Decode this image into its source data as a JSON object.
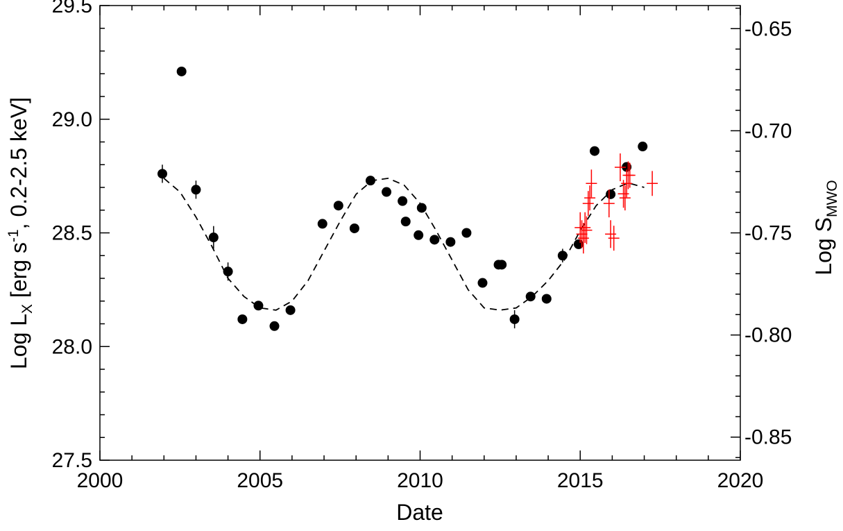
{
  "chart_data": {
    "type": "scatter",
    "xlabel": "Date",
    "ylabel": {
      "main": "Log L",
      "sub": "X",
      "rest1": " [erg s",
      "sup": "-1",
      "rest2": ", 0.2-2.5 keV]"
    },
    "y2label": {
      "main": "Log S",
      "sub": "MWO"
    },
    "xlim": [
      2000,
      2020
    ],
    "ylim": [
      27.5,
      29.5
    ],
    "y2lim": [
      -0.8613,
      -0.6387
    ],
    "xticks": [
      "2000",
      "2005",
      "2010",
      "2015",
      "2020"
    ],
    "yticks": [
      "27.5",
      "28.0",
      "28.5",
      "29.0",
      "29.5"
    ],
    "y2ticks": [
      "-0.85",
      "-0.80",
      "-0.75",
      "-0.70",
      "-0.65"
    ],
    "grid": false,
    "series": [
      {
        "kind": "x-ray-points",
        "color": "#000000",
        "points": [
          {
            "x": 2001.95,
            "y": 28.76,
            "err": 0.04
          },
          {
            "x": 2002.55,
            "y": 29.21,
            "err": 0.0
          },
          {
            "x": 2003.0,
            "y": 28.69,
            "err": 0.04
          },
          {
            "x": 2003.55,
            "y": 28.48,
            "err": 0.05
          },
          {
            "x": 2004.0,
            "y": 28.33,
            "err": 0.04
          },
          {
            "x": 2004.45,
            "y": 28.12,
            "err": 0.0
          },
          {
            "x": 2004.95,
            "y": 28.18,
            "err": 0.0
          },
          {
            "x": 2005.45,
            "y": 28.09,
            "err": 0.0
          },
          {
            "x": 2005.95,
            "y": 28.16,
            "err": 0.0
          },
          {
            "x": 2006.95,
            "y": 28.54,
            "err": 0.0
          },
          {
            "x": 2007.45,
            "y": 28.62,
            "err": 0.0
          },
          {
            "x": 2007.95,
            "y": 28.52,
            "err": 0.0
          },
          {
            "x": 2008.45,
            "y": 28.73,
            "err": 0.0
          },
          {
            "x": 2008.95,
            "y": 28.68,
            "err": 0.0
          },
          {
            "x": 2009.45,
            "y": 28.64,
            "err": 0.0
          },
          {
            "x": 2009.55,
            "y": 28.55,
            "err": 0.0
          },
          {
            "x": 2009.95,
            "y": 28.49,
            "err": 0.0
          },
          {
            "x": 2010.05,
            "y": 28.61,
            "err": 0.0
          },
          {
            "x": 2010.45,
            "y": 28.47,
            "err": 0.0
          },
          {
            "x": 2010.95,
            "y": 28.46,
            "err": 0.0
          },
          {
            "x": 2011.45,
            "y": 28.5,
            "err": 0.0
          },
          {
            "x": 2011.95,
            "y": 28.28,
            "err": 0.0
          },
          {
            "x": 2012.45,
            "y": 28.36,
            "err": 0.0
          },
          {
            "x": 2012.55,
            "y": 28.36,
            "err": 0.0
          },
          {
            "x": 2012.95,
            "y": 28.12,
            "err": 0.04
          },
          {
            "x": 2013.45,
            "y": 28.22,
            "err": 0.0
          },
          {
            "x": 2013.95,
            "y": 28.21,
            "err": 0.0
          },
          {
            "x": 2014.45,
            "y": 28.4,
            "err": 0.03
          },
          {
            "x": 2014.95,
            "y": 28.45,
            "err": 0.0
          },
          {
            "x": 2015.45,
            "y": 28.86,
            "err": 0.0
          },
          {
            "x": 2015.95,
            "y": 28.67,
            "err": 0.0
          },
          {
            "x": 2016.45,
            "y": 28.79,
            "err": 0.0
          },
          {
            "x": 2016.95,
            "y": 28.88,
            "err": 0.0
          }
        ]
      },
      {
        "kind": "chromospheric-crosses",
        "color": "#ff0000",
        "axis": "y2",
        "points": [
          {
            "x": 2015.0,
            "y": -0.7474,
            "err": 0.0075
          },
          {
            "x": 2015.05,
            "y": -0.7506,
            "err": 0.0068
          },
          {
            "x": 2015.1,
            "y": -0.7526,
            "err": 0.0075
          },
          {
            "x": 2015.15,
            "y": -0.7474,
            "err": 0.0075
          },
          {
            "x": 2015.2,
            "y": -0.7487,
            "err": 0.0068
          },
          {
            "x": 2015.25,
            "y": -0.7356,
            "err": 0.0061
          },
          {
            "x": 2015.3,
            "y": -0.7329,
            "err": 0.0061
          },
          {
            "x": 2015.35,
            "y": -0.7258,
            "err": 0.0068
          },
          {
            "x": 2015.9,
            "y": -0.7356,
            "err": 0.0068
          },
          {
            "x": 2015.95,
            "y": -0.7506,
            "err": 0.0068
          },
          {
            "x": 2016.05,
            "y": -0.7526,
            "err": 0.0061
          },
          {
            "x": 2016.25,
            "y": -0.7179,
            "err": 0.0068
          },
          {
            "x": 2016.35,
            "y": -0.7309,
            "err": 0.0068
          },
          {
            "x": 2016.4,
            "y": -0.7329,
            "err": 0.0061
          },
          {
            "x": 2016.45,
            "y": -0.7258,
            "err": 0.0068
          },
          {
            "x": 2016.5,
            "y": -0.7218,
            "err": 0.0068
          },
          {
            "x": 2016.55,
            "y": -0.7218,
            "err": 0.0061
          },
          {
            "x": 2017.25,
            "y": -0.7258,
            "err": 0.0061
          }
        ]
      },
      {
        "kind": "sine-fit",
        "style": "dashed",
        "color": "#000000",
        "x": [
          2002.0,
          2002.5,
          2003.0,
          2003.5,
          2004.0,
          2004.5,
          2005.0,
          2005.5,
          2006.0,
          2006.5,
          2007.0,
          2007.5,
          2008.0,
          2008.5,
          2009.0,
          2009.5,
          2010.0,
          2010.5,
          2011.0,
          2011.5,
          2012.0,
          2012.5,
          2013.0,
          2013.5,
          2014.0,
          2014.5,
          2015.0,
          2015.5,
          2016.0,
          2016.5,
          2017.0
        ],
        "y": [
          28.74,
          28.68,
          28.57,
          28.44,
          28.3,
          28.22,
          28.17,
          28.16,
          28.2,
          28.29,
          28.42,
          28.55,
          28.67,
          28.73,
          28.74,
          28.71,
          28.63,
          28.51,
          28.38,
          28.25,
          28.17,
          28.16,
          28.17,
          28.22,
          28.29,
          28.38,
          28.51,
          28.62,
          28.69,
          28.72,
          28.7
        ]
      }
    ]
  }
}
